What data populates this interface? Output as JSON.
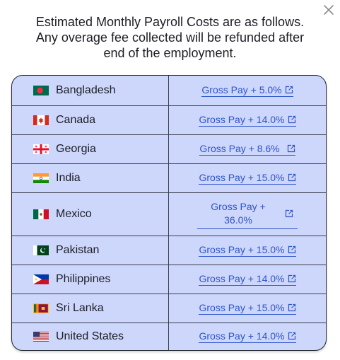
{
  "dialog": {
    "heading": "Estimated Monthly Payroll Costs are as follows. Any overage fee collected will be refunded after end of the employment.",
    "close_icon": "close-icon",
    "link_icon": "external-link-icon",
    "accent_color": "#2f55c9",
    "table_background": "#cdd6fb"
  },
  "rows": [
    {
      "country": "Bangladesh",
      "flag": "flag-bangladesh",
      "cost": "Gross Pay + 5.0%"
    },
    {
      "country": "Canada",
      "flag": "flag-canada",
      "cost": "Gross Pay + 14.0%"
    },
    {
      "country": "Georgia",
      "flag": "flag-georgia",
      "cost": "Gross Pay + 8.6%"
    },
    {
      "country": "India",
      "flag": "flag-india",
      "cost": "Gross Pay + 15.0%"
    },
    {
      "country": "Mexico",
      "flag": "flag-mexico",
      "cost": "Gross Pay + 36.0%"
    },
    {
      "country": "Pakistan",
      "flag": "flag-pakistan",
      "cost": "Gross Pay + 15.0%"
    },
    {
      "country": "Philippines",
      "flag": "flag-philippines",
      "cost": "Gross Pay + 14.0%"
    },
    {
      "country": "Sri Lanka",
      "flag": "flag-sri-lanka",
      "cost": "Gross Pay + 15.0%"
    },
    {
      "country": "United States",
      "flag": "flag-united-states",
      "cost": "Gross Pay + 14.0%"
    }
  ]
}
